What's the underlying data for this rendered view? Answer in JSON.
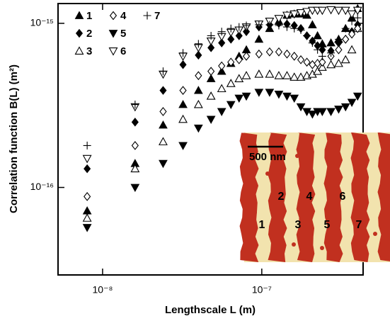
{
  "chart_data": {
    "type": "scatter",
    "xlabel": "Lengthscale L (m)",
    "ylabel": "Correlation function B(L) (m²)",
    "xscale": "log",
    "yscale": "log",
    "xlim": [
      5.25e-09,
      4.33e-07
    ],
    "ylim": [
      2.93e-17,
      1.32e-15
    ],
    "xticks": [
      {
        "value": 1e-08,
        "label": "10⁻⁸"
      },
      {
        "value": 1e-07,
        "label": "10⁻⁷"
      }
    ],
    "yticks": [
      {
        "value": 1e-16,
        "label": "10⁻¹⁶"
      },
      {
        "value": 1e-15,
        "label": "10⁻¹⁵"
      }
    ],
    "x": [
      8e-09,
      1.6e-08,
      2.4e-08,
      3.2e-08,
      4e-08,
      4.8e-08,
      5.6e-08,
      6.4e-08,
      7.2e-08,
      8e-08,
      9.6e-08,
      1.12e-07,
      1.28e-07,
      1.44e-07,
      1.6e-07,
      1.76e-07,
      1.92e-07,
      2.08e-07,
      2.24e-07,
      2.4e-07,
      2.72e-07,
      3.04e-07,
      3.36e-07,
      3.68e-07,
      4e-07
    ],
    "series": [
      {
        "name": "1",
        "color": "#000000",
        "marker": "triangle-up",
        "filled": true,
        "values": [
          7.2e-17,
          1.4e-16,
          2.4e-16,
          3.2e-16,
          3.9e-16,
          4.6e-16,
          5.1e-16,
          5.7e-16,
          6.3e-16,
          6.9e-16,
          8e-16,
          9.3e-16,
          1.03e-15,
          1.12e-15,
          1.14e-15,
          1.14e-15,
          1.12e-15,
          9.8e-16,
          8.4e-16,
          7.5e-16,
          7.6e-16,
          8e-16,
          9.3e-16,
          1.08e-15,
          1.23e-15
        ]
      },
      {
        "name": "2",
        "color": "#000000",
        "marker": "diamond",
        "filled": true,
        "values": [
          1.3e-16,
          2.5e-16,
          3.9e-16,
          5.6e-16,
          6.4e-16,
          7.1e-16,
          7.6e-16,
          8e-16,
          8.4e-16,
          8.9e-16,
          9.5e-16,
          9.8e-16,
          1e-15,
          9.9e-16,
          9.7e-16,
          9.3e-16,
          8.4e-16,
          7.8e-16,
          7.3e-16,
          6.9e-16,
          6.8e-16,
          7.6e-16,
          8e-16,
          8.9e-16,
          9.8e-16
        ]
      },
      {
        "name": "3",
        "color": "#000000",
        "marker": "triangle-up",
        "filled": false,
        "values": [
          6.5e-17,
          1.3e-16,
          1.9e-16,
          2.6e-16,
          3.2e-16,
          3.6e-16,
          4e-16,
          4.3e-16,
          4.6e-16,
          4.8e-16,
          4.9e-16,
          4.9e-16,
          4.8e-16,
          4.8e-16,
          4.7e-16,
          4.7e-16,
          4.8e-16,
          4.9e-16,
          5.1e-16,
          5.4e-16,
          5.6e-16,
          5.7e-16,
          6e-16,
          6.9e-16,
          9.3e-16
        ]
      },
      {
        "name": "4",
        "color": "#000000",
        "marker": "diamond",
        "filled": false,
        "values": [
          8.8e-17,
          1.8e-16,
          2.9e-16,
          3.9e-16,
          4.8e-16,
          5.1e-16,
          5.5e-16,
          5.8e-16,
          6e-16,
          6.3e-16,
          6.5e-16,
          6.7e-16,
          6.7e-16,
          6.5e-16,
          6.3e-16,
          6e-16,
          5.8e-16,
          5.6e-16,
          5.7e-16,
          5.8e-16,
          6.3e-16,
          6.9e-16,
          8e-16,
          8.6e-16,
          9.3e-16
        ]
      },
      {
        "name": "5",
        "color": "#000000",
        "marker": "triangle-down",
        "filled": true,
        "values": [
          5.7e-17,
          1e-16,
          1.4e-16,
          1.8e-16,
          2.3e-16,
          2.6e-16,
          2.9e-16,
          3.2e-16,
          3.5e-16,
          3.6e-16,
          3.8e-16,
          3.8e-16,
          3.7e-16,
          3.6e-16,
          3.5e-16,
          3.1e-16,
          2.9e-16,
          2.8e-16,
          2.9e-16,
          2.9e-16,
          2.9e-16,
          3e-16,
          3.1e-16,
          3.3e-16,
          3.6e-16
        ]
      },
      {
        "name": "6",
        "color": "#000000",
        "marker": "triangle-down",
        "filled": false,
        "values": [
          1.5e-16,
          3.1e-16,
          4.9e-16,
          6.3e-16,
          7.1e-16,
          7.8e-16,
          8.3e-16,
          8.8e-16,
          9.1e-16,
          9.5e-16,
          9.9e-16,
          1.03e-15,
          1.07e-15,
          1.12e-15,
          1.14e-15,
          1.16e-15,
          1.18e-15,
          1.2e-15,
          1.2e-15,
          1.2e-15,
          1.21e-15,
          1.2e-15,
          1.2e-15,
          1.14e-15,
          1.2e-15
        ]
      },
      {
        "name": "7",
        "color": "#000000",
        "marker": "plus",
        "filled": false,
        "values": [
          1.8e-16,
          3.2e-16,
          5.1e-16,
          6.6e-16,
          7.5e-16,
          8.4e-16,
          8.9e-16,
          9.3e-16,
          9.5e-16,
          9.7e-16,
          9.8e-16,
          9.8e-16,
          9.7e-16,
          9.5e-16,
          9.3e-16,
          9.1e-16,
          8.4e-16,
          7.6e-16,
          6.9e-16,
          6.3e-16,
          6.6e-16,
          8e-16,
          9.3e-16,
          1.03e-15,
          1.08e-15
        ]
      }
    ]
  },
  "inset": {
    "scale_label": "500 nm",
    "stripe_labels": [
      "1",
      "2",
      "3",
      "4",
      "5",
      "6",
      "7"
    ]
  }
}
